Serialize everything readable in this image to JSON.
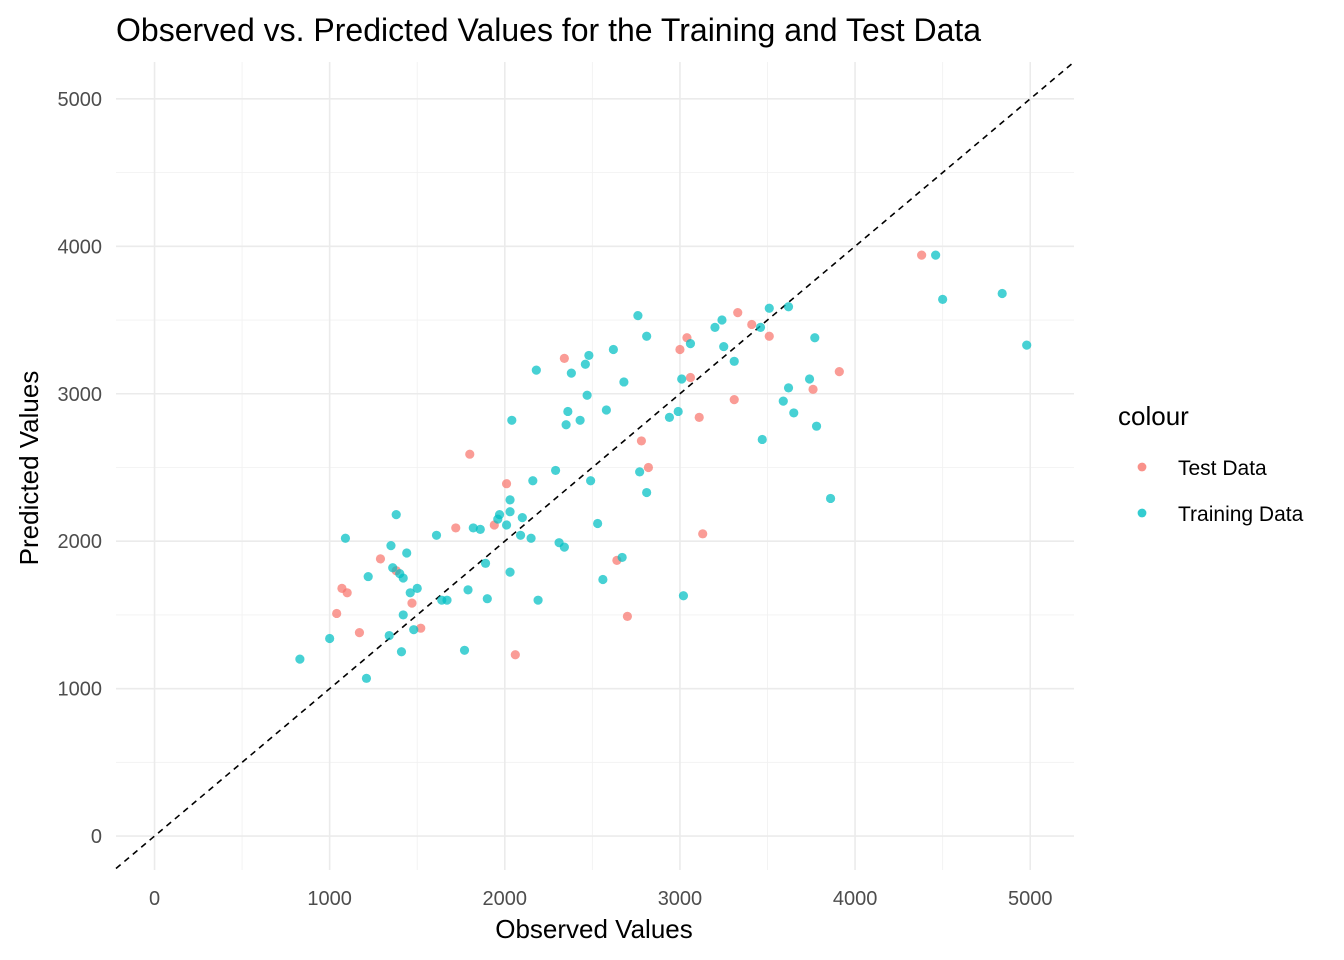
{
  "chart_data": {
    "type": "scatter",
    "title": "Observed vs. Predicted Values for the Training and Test Data",
    "xlabel": "Observed Values",
    "ylabel": "Predicted Values",
    "xlim": [
      -220,
      5250
    ],
    "ylim": [
      -230,
      5250
    ],
    "x_ticks": [
      0,
      1000,
      2000,
      3000,
      4000,
      5000
    ],
    "y_ticks": [
      0,
      1000,
      2000,
      3000,
      4000,
      5000
    ],
    "x_tick_labels": [
      "0",
      "1000",
      "2000",
      "3000",
      "4000",
      "5000"
    ],
    "y_tick_labels": [
      "0",
      "1000",
      "2000",
      "3000",
      "4000",
      "5000"
    ],
    "grid": true,
    "reference_line": {
      "type": "identity",
      "style": "dashed",
      "color": "#000000"
    },
    "legend": {
      "title": "colour",
      "placement": "right",
      "entries": [
        "Test Data",
        "Training Data"
      ]
    },
    "series": [
      {
        "name": "Test Data",
        "color": "#F8766D",
        "points": [
          [
            1040,
            1510
          ],
          [
            1070,
            1680
          ],
          [
            1100,
            1650
          ],
          [
            1170,
            1380
          ],
          [
            1290,
            1880
          ],
          [
            1380,
            1800
          ],
          [
            1470,
            1580
          ],
          [
            1520,
            1410
          ],
          [
            1720,
            2090
          ],
          [
            1800,
            2590
          ],
          [
            1940,
            2110
          ],
          [
            2010,
            2390
          ],
          [
            2060,
            1230
          ],
          [
            2340,
            3240
          ],
          [
            2640,
            1870
          ],
          [
            2700,
            1490
          ],
          [
            2780,
            2680
          ],
          [
            2820,
            2500
          ],
          [
            3000,
            3300
          ],
          [
            3040,
            3380
          ],
          [
            3060,
            3110
          ],
          [
            3110,
            2840
          ],
          [
            3130,
            2050
          ],
          [
            3310,
            2960
          ],
          [
            3330,
            3550
          ],
          [
            3410,
            3470
          ],
          [
            3510,
            3390
          ],
          [
            3760,
            3030
          ],
          [
            3910,
            3150
          ],
          [
            4380,
            3940
          ]
        ]
      },
      {
        "name": "Training Data",
        "color": "#00BFC4",
        "points": [
          [
            830,
            1200
          ],
          [
            1000,
            1340
          ],
          [
            1090,
            2020
          ],
          [
            1210,
            1070
          ],
          [
            1220,
            1760
          ],
          [
            1340,
            1360
          ],
          [
            1350,
            1970
          ],
          [
            1360,
            1820
          ],
          [
            1380,
            2180
          ],
          [
            1400,
            1780
          ],
          [
            1410,
            1250
          ],
          [
            1420,
            1750
          ],
          [
            1420,
            1500
          ],
          [
            1440,
            1920
          ],
          [
            1460,
            1650
          ],
          [
            1480,
            1400
          ],
          [
            1500,
            1680
          ],
          [
            1610,
            2040
          ],
          [
            1640,
            1600
          ],
          [
            1670,
            1600
          ],
          [
            1770,
            1260
          ],
          [
            1790,
            1670
          ],
          [
            1820,
            2090
          ],
          [
            1860,
            2080
          ],
          [
            1890,
            1850
          ],
          [
            1900,
            1610
          ],
          [
            1960,
            2150
          ],
          [
            1970,
            2180
          ],
          [
            2010,
            2110
          ],
          [
            2030,
            2280
          ],
          [
            2030,
            2200
          ],
          [
            2030,
            1790
          ],
          [
            2040,
            2820
          ],
          [
            2090,
            2040
          ],
          [
            2100,
            2160
          ],
          [
            2150,
            2020
          ],
          [
            2160,
            2410
          ],
          [
            2180,
            3160
          ],
          [
            2190,
            1600
          ],
          [
            2290,
            2480
          ],
          [
            2310,
            1990
          ],
          [
            2340,
            1960
          ],
          [
            2350,
            2790
          ],
          [
            2360,
            2880
          ],
          [
            2380,
            3140
          ],
          [
            2430,
            2820
          ],
          [
            2460,
            3200
          ],
          [
            2470,
            2990
          ],
          [
            2480,
            3260
          ],
          [
            2490,
            2410
          ],
          [
            2530,
            2120
          ],
          [
            2560,
            1740
          ],
          [
            2580,
            2890
          ],
          [
            2620,
            3300
          ],
          [
            2670,
            1890
          ],
          [
            2680,
            3080
          ],
          [
            2760,
            3530
          ],
          [
            2770,
            2470
          ],
          [
            2810,
            3390
          ],
          [
            2810,
            2330
          ],
          [
            2940,
            2840
          ],
          [
            2990,
            2880
          ],
          [
            3010,
            3100
          ],
          [
            3020,
            1630
          ],
          [
            3060,
            3340
          ],
          [
            3200,
            3450
          ],
          [
            3240,
            3500
          ],
          [
            3250,
            3320
          ],
          [
            3310,
            3220
          ],
          [
            3460,
            3450
          ],
          [
            3470,
            2690
          ],
          [
            3510,
            3580
          ],
          [
            3590,
            2950
          ],
          [
            3620,
            3040
          ],
          [
            3620,
            3590
          ],
          [
            3650,
            2870
          ],
          [
            3740,
            3100
          ],
          [
            3770,
            3380
          ],
          [
            3780,
            2780
          ],
          [
            3860,
            2290
          ],
          [
            4460,
            3940
          ],
          [
            4500,
            3640
          ],
          [
            4840,
            3680
          ],
          [
            4980,
            3330
          ]
        ]
      }
    ]
  }
}
